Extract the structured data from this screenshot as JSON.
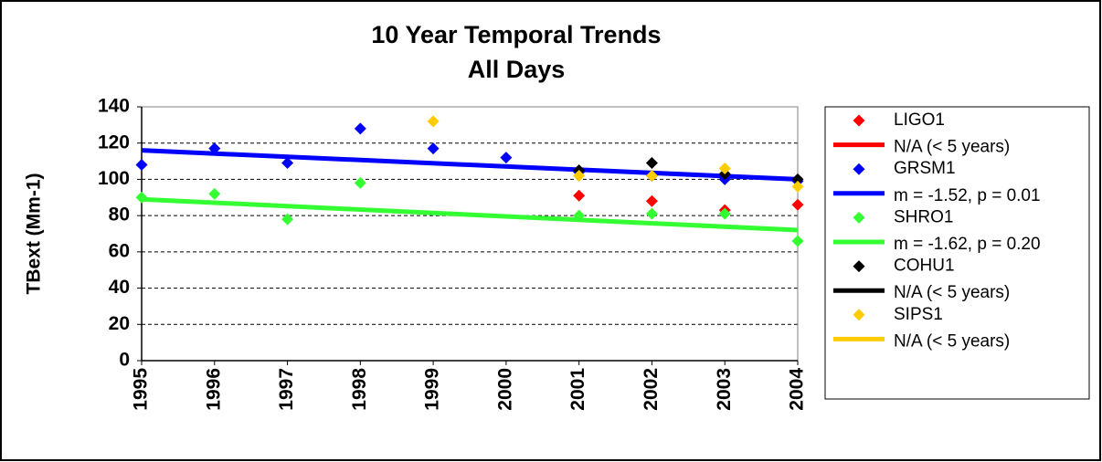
{
  "chart_data": {
    "type": "scatter",
    "title": [
      "10 Year Temporal Trends",
      "All Days"
    ],
    "y_label": "TBext (Mm-1)",
    "x": [
      1995,
      1996,
      1997,
      1998,
      1999,
      2000,
      2001,
      2002,
      2003,
      2004
    ],
    "xlim": [
      1995,
      2004
    ],
    "xticks": [
      1995,
      1996,
      1997,
      1998,
      1999,
      2000,
      2001,
      2002,
      2003,
      2004
    ],
    "ylim": [
      0,
      140
    ],
    "yticks": [
      0,
      20,
      40,
      60,
      80,
      100,
      120,
      140
    ],
    "grid": true,
    "legend": "right",
    "series": [
      {
        "name": "LIGO1",
        "color": "#ff0000",
        "values": [
          null,
          null,
          null,
          null,
          null,
          null,
          91,
          88,
          83,
          86
        ],
        "trend_label": "N/A (< 5 years)"
      },
      {
        "name": "GRSM1",
        "color": "#0000ff",
        "values": [
          108,
          117,
          109,
          128,
          117,
          112,
          104,
          102,
          100,
          99
        ],
        "trend_label": "m = -1.52,  p = 0.01",
        "trend_x": [
          1995,
          2004
        ],
        "trend_values": [
          116,
          100
        ]
      },
      {
        "name": "SHRO1",
        "color": "#33ff33",
        "values": [
          90,
          92,
          78,
          98,
          null,
          null,
          80,
          81,
          81,
          66
        ],
        "trend_label": "m = -1.62,  p = 0.20",
        "trend_x": [
          1995,
          2004
        ],
        "trend_values": [
          89,
          72
        ]
      },
      {
        "name": "COHU1",
        "color": "#000000",
        "values": [
          null,
          null,
          null,
          null,
          null,
          null,
          105,
          109,
          103,
          100
        ],
        "trend_label": "N/A (< 5 years)"
      },
      {
        "name": "SIPS1",
        "color": "#ffcc00",
        "values": [
          null,
          null,
          null,
          null,
          132,
          null,
          102,
          102,
          106,
          96
        ],
        "trend_label": "N/A (< 5 years)"
      }
    ]
  }
}
